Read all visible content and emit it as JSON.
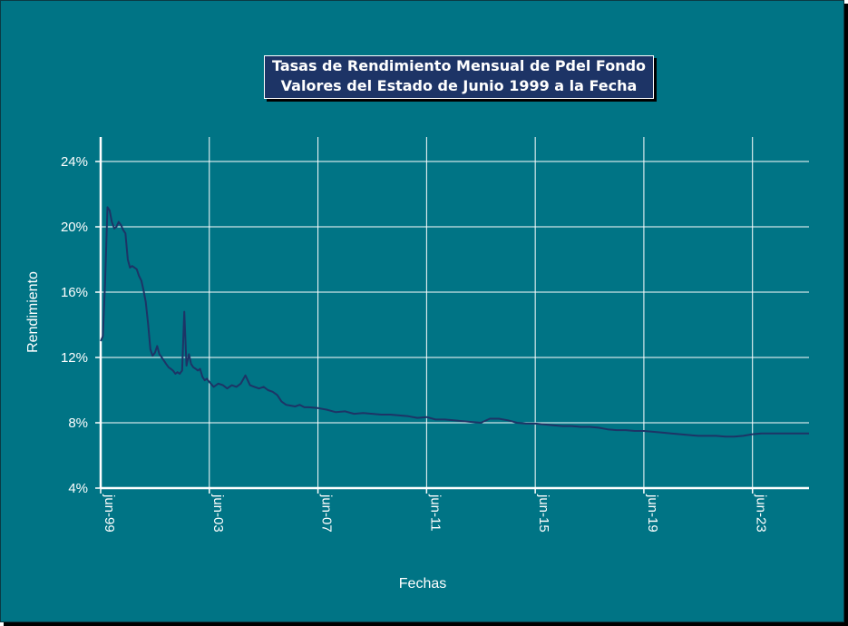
{
  "chart_data": {
    "type": "line",
    "title": [
      "Tasas de Rendimiento Mensual de Pdel Fondo",
      "Valores del Estado de Junio 1999 a la Fecha"
    ],
    "xlabel": "Fechas",
    "ylabel": "Rendimiento",
    "y_ticks": [
      "4%",
      "8%",
      "12%",
      "16%",
      "20%",
      "24%"
    ],
    "y_tick_values": [
      4,
      8,
      12,
      16,
      20,
      24
    ],
    "ylim": [
      4,
      25.5
    ],
    "x_ticks": [
      "jun-99",
      "jun-03",
      "jun-07",
      "jun-11",
      "jun-15",
      "jun-19",
      "jun-23"
    ],
    "x_tick_values": [
      1999.42,
      2003.42,
      2007.42,
      2011.42,
      2015.42,
      2019.42,
      2023.42
    ],
    "xlim": [
      1999.42,
      2025.5
    ],
    "grid": true,
    "colors": {
      "background": "#007485",
      "line": "#1d3466",
      "grid": "#ffffff",
      "title_box": "#1d3466"
    },
    "series": [
      {
        "x": [
          1999.42,
          1999.5,
          1999.58,
          1999.67,
          1999.75,
          1999.83,
          1999.92,
          2000.0,
          2000.08,
          2000.17,
          2000.25,
          2000.33,
          2000.42,
          2000.5,
          2000.58,
          2000.67,
          2000.75,
          2000.83,
          2000.92,
          2001.0,
          2001.08,
          2001.17,
          2001.25,
          2001.33,
          2001.42,
          2001.5,
          2001.58,
          2001.67,
          2001.75,
          2001.83,
          2001.92,
          2002.0,
          2002.08,
          2002.17,
          2002.25,
          2002.33,
          2002.42,
          2002.5,
          2002.58,
          2002.67,
          2002.75,
          2002.83,
          2002.92,
          2003.0,
          2003.08,
          2003.17,
          2003.25,
          2003.33,
          2003.42,
          2003.58,
          2003.75,
          2003.92,
          2004.08,
          2004.25,
          2004.42,
          2004.58,
          2004.75,
          2004.92,
          2005.08,
          2005.25,
          2005.42,
          2005.58,
          2005.75,
          2005.92,
          2006.08,
          2006.25,
          2006.42,
          2006.58,
          2006.75,
          2006.92,
          2007.08,
          2007.42,
          2007.75,
          2008.08,
          2008.42,
          2008.75,
          2009.08,
          2009.42,
          2009.75,
          2010.08,
          2010.42,
          2010.75,
          2011.08,
          2011.42,
          2011.75,
          2012.08,
          2012.42,
          2012.75,
          2013.08,
          2013.42,
          2013.75,
          2014.08,
          2014.42,
          2014.75,
          2015.08,
          2015.42,
          2015.75,
          2016.08,
          2016.42,
          2016.75,
          2017.08,
          2017.42,
          2017.75,
          2018.08,
          2018.42,
          2018.75,
          2019.08,
          2019.42,
          2019.75,
          2020.08,
          2020.42,
          2020.75,
          2021.08,
          2021.42,
          2021.75,
          2022.08,
          2022.42,
          2022.75,
          2023.08,
          2023.42,
          2023.75,
          2024.08,
          2024.42,
          2024.75,
          2025.08,
          2025.5
        ],
        "y": [
          13.0,
          13.3,
          16.5,
          21.2,
          21.0,
          20.3,
          19.9,
          20.0,
          20.3,
          20.1,
          19.8,
          19.6,
          18.0,
          17.5,
          17.6,
          17.5,
          17.4,
          17.0,
          16.7,
          16.1,
          15.4,
          14.0,
          12.5,
          12.1,
          12.3,
          12.7,
          12.2,
          12.0,
          11.8,
          11.6,
          11.4,
          11.3,
          11.2,
          11.0,
          11.1,
          11.0,
          11.2,
          14.8,
          11.5,
          12.2,
          11.6,
          11.4,
          11.3,
          11.2,
          11.3,
          10.8,
          10.6,
          10.7,
          10.5,
          10.2,
          10.4,
          10.3,
          10.1,
          10.3,
          10.2,
          10.4,
          10.9,
          10.3,
          10.2,
          10.1,
          10.2,
          10.0,
          9.9,
          9.7,
          9.3,
          9.1,
          9.05,
          9.0,
          9.1,
          8.95,
          8.95,
          8.9,
          8.8,
          8.65,
          8.7,
          8.55,
          8.6,
          8.55,
          8.5,
          8.5,
          8.45,
          8.4,
          8.3,
          8.35,
          8.2,
          8.2,
          8.15,
          8.1,
          8.05,
          8.0,
          8.25,
          8.25,
          8.15,
          8.0,
          7.95,
          7.95,
          7.9,
          7.85,
          7.8,
          7.8,
          7.75,
          7.75,
          7.7,
          7.6,
          7.55,
          7.55,
          7.5,
          7.5,
          7.45,
          7.4,
          7.35,
          7.3,
          7.25,
          7.2,
          7.2,
          7.2,
          7.15,
          7.15,
          7.2,
          7.3,
          7.35,
          7.35,
          7.35,
          7.35,
          7.35,
          7.35
        ]
      }
    ]
  }
}
